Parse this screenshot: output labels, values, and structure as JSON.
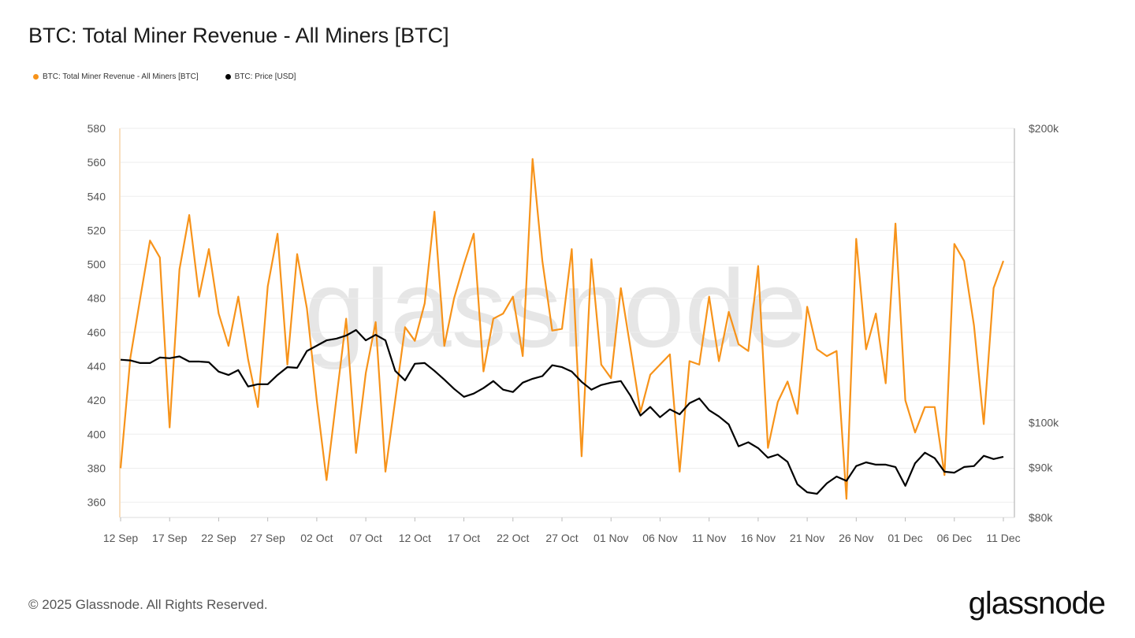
{
  "title": "BTC: Total Miner Revenue - All Miners [BTC]",
  "legend": [
    {
      "label": "BTC: Total Miner Revenue - All Miners [BTC]",
      "color": "#f7931a"
    },
    {
      "label": "BTC: Price [USD]",
      "color": "#000000"
    }
  ],
  "watermark": "glassnode",
  "footer": {
    "copyright": "© 2025 Glassnode. All Rights Reserved.",
    "logo": "glassnode"
  },
  "chart_data": {
    "type": "line",
    "title": "BTC: Total Miner Revenue - All Miners [BTC]",
    "grid": true,
    "legend_position": "top-left",
    "x": [
      "12 Sep",
      "13 Sep",
      "14 Sep",
      "15 Sep",
      "16 Sep",
      "17 Sep",
      "18 Sep",
      "19 Sep",
      "20 Sep",
      "21 Sep",
      "22 Sep",
      "23 Sep",
      "24 Sep",
      "25 Sep",
      "26 Sep",
      "27 Sep",
      "28 Sep",
      "29 Sep",
      "30 Sep",
      "01 Oct",
      "02 Oct",
      "03 Oct",
      "04 Oct",
      "05 Oct",
      "06 Oct",
      "07 Oct",
      "08 Oct",
      "09 Oct",
      "10 Oct",
      "11 Oct",
      "12 Oct",
      "13 Oct",
      "14 Oct",
      "15 Oct",
      "16 Oct",
      "17 Oct",
      "18 Oct",
      "19 Oct",
      "20 Oct",
      "21 Oct",
      "22 Oct",
      "23 Oct",
      "24 Oct",
      "25 Oct",
      "26 Oct",
      "27 Oct",
      "28 Oct",
      "29 Oct",
      "30 Oct",
      "31 Oct",
      "01 Nov",
      "02 Nov",
      "03 Nov",
      "04 Nov",
      "05 Nov",
      "06 Nov",
      "07 Nov",
      "08 Nov",
      "09 Nov",
      "10 Nov",
      "11 Nov",
      "12 Nov",
      "13 Nov",
      "14 Nov",
      "15 Nov",
      "16 Nov",
      "17 Nov",
      "18 Nov",
      "19 Nov",
      "20 Nov",
      "21 Nov",
      "22 Nov",
      "23 Nov",
      "24 Nov",
      "25 Nov",
      "26 Nov",
      "27 Nov",
      "28 Nov",
      "29 Nov",
      "30 Nov",
      "01 Dec",
      "02 Dec",
      "03 Dec",
      "04 Dec",
      "05 Dec",
      "06 Dec",
      "07 Dec",
      "08 Dec",
      "09 Dec",
      "10 Dec",
      "11 Dec"
    ],
    "x_ticks": [
      "12 Sep",
      "17 Sep",
      "22 Sep",
      "27 Sep",
      "02 Oct",
      "07 Oct",
      "12 Oct",
      "17 Oct",
      "22 Oct",
      "27 Oct",
      "01 Nov",
      "06 Nov",
      "11 Nov",
      "16 Nov",
      "21 Nov",
      "26 Nov",
      "01 Dec",
      "06 Dec",
      "11 Dec"
    ],
    "y_left": {
      "ticks": [
        360,
        380,
        400,
        420,
        440,
        460,
        480,
        500,
        520,
        540,
        560,
        580
      ],
      "ylim": [
        351,
        580
      ],
      "scale": "linear"
    },
    "y_right": {
      "ticks": [
        80,
        90,
        100,
        200
      ],
      "tick_labels": [
        "$80k",
        "$90k",
        "$100k",
        "$200k"
      ],
      "ylim": [
        80,
        200
      ],
      "scale": "log",
      "unit": "USD thousands"
    },
    "series": [
      {
        "name": "BTC: Total Miner Revenue - All Miners [BTC]",
        "axis": "left",
        "color": "#f7931a",
        "values": [
          380,
          445,
          480,
          514,
          504,
          404,
          497,
          529,
          481,
          509,
          471,
          452,
          481,
          444,
          416,
          487,
          518,
          441,
          506,
          474,
          420,
          373,
          421,
          468,
          389,
          436,
          466,
          378,
          420,
          463,
          455,
          477,
          531,
          452,
          480,
          500,
          518,
          437,
          468,
          471,
          481,
          446,
          562,
          502,
          461,
          462,
          509,
          387,
          503,
          441,
          433,
          486,
          450,
          413,
          435,
          441,
          447,
          378,
          443,
          441,
          481,
          443,
          472,
          453,
          449,
          499,
          392,
          419,
          431,
          412,
          475,
          450,
          446,
          449,
          362,
          515,
          450,
          471,
          430,
          524,
          420,
          401,
          416,
          416,
          376,
          512,
          502,
          464,
          406,
          486,
          502
        ]
      },
      {
        "name": "BTC: Price [USD]",
        "axis": "right",
        "color": "#000000",
        "values": [
          116.0,
          115.8,
          115.1,
          115.1,
          116.6,
          116.4,
          116.9,
          115.5,
          115.5,
          115.3,
          112.8,
          111.9,
          113.2,
          108.9,
          109.5,
          109.5,
          111.9,
          114.0,
          113.8,
          118.4,
          119.9,
          121.4,
          121.9,
          122.8,
          124.4,
          121.4,
          123.0,
          121.4,
          113.0,
          110.5,
          114.9,
          115.1,
          113.0,
          110.7,
          108.3,
          106.3,
          107.1,
          108.5,
          110.3,
          108.1,
          107.5,
          109.9,
          110.9,
          111.6,
          114.5,
          114.0,
          112.8,
          110.1,
          108.1,
          109.3,
          109.9,
          110.3,
          106.5,
          101.7,
          103.8,
          101.3,
          103.2,
          102.0,
          104.7,
          105.9,
          103.0,
          101.5,
          99.6,
          94.6,
          95.5,
          94.2,
          92.1,
          92.8,
          91.2,
          86.5,
          84.9,
          84.6,
          86.7,
          88.1,
          87.2,
          90.3,
          91.1,
          90.6,
          90.6,
          90.1,
          86.2,
          90.9,
          93.2,
          92.0,
          89.1,
          88.9,
          90.1,
          90.3,
          92.5,
          91.8,
          92.3
        ]
      }
    ]
  }
}
